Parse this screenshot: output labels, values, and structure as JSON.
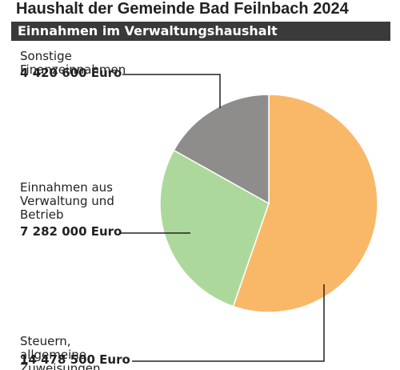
{
  "chart_data": {
    "type": "pie",
    "title": "Haushalt der Gemeinde Bad Feilnbach 2024",
    "subtitle": "Einnahmen im Verwaltungshaushalt",
    "categories": [
      "Steuern, allgemeine Zuweisungen",
      "Einnahmen aus Verwaltung und Betrieb",
      "Sonstige Finanzeinnahmen"
    ],
    "values": [
      14478500,
      7282000,
      4420600
    ],
    "value_labels": [
      "14 478 500 Euro",
      "7 282 000 Euro",
      "4 420 600 Euro"
    ],
    "colors": [
      "#f9b868",
      "#acd99b",
      "#8f8c8c"
    ]
  }
}
